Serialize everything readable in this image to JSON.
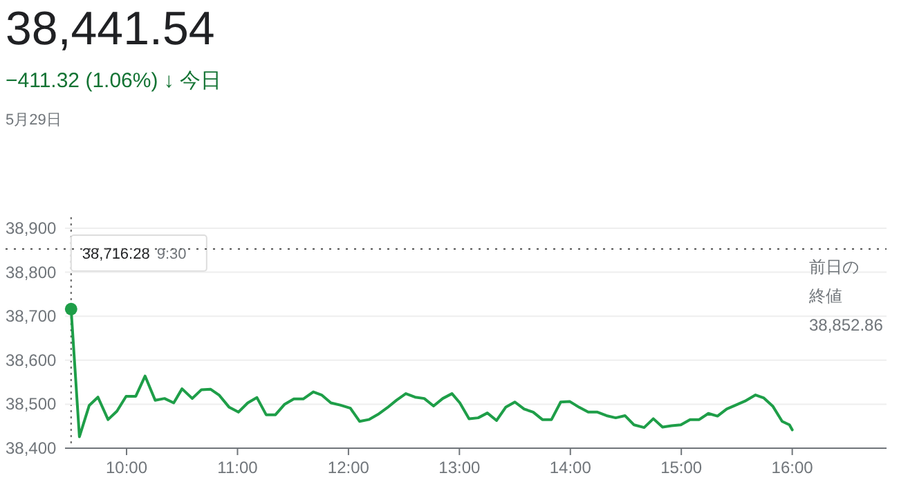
{
  "chart_data": {
    "type": "line",
    "title": "38,441.54",
    "subtitle": "−411.32 (1.06%) ↓ 今日",
    "annotations": [
      "5月29日",
      "38,716.28 9:30"
    ],
    "series": [
      {
        "color": "#1e9e48",
        "x": [
          9.5,
          9.575,
          9.663,
          9.742,
          9.833,
          9.913,
          9.996,
          10.083,
          10.167,
          10.258,
          10.342,
          10.425,
          10.5,
          10.592,
          10.675,
          10.758,
          10.833,
          10.925,
          11.008,
          11.092,
          11.175,
          11.258,
          11.342,
          11.425,
          11.508,
          11.592,
          11.683,
          11.758,
          11.842,
          11.925,
          12.017,
          12.1,
          12.183,
          12.267,
          12.35,
          12.433,
          12.517,
          12.6,
          12.683,
          12.767,
          12.85,
          12.933,
          13.004,
          13.087,
          13.169,
          13.252,
          13.335,
          13.417,
          13.5,
          13.583,
          13.665,
          13.748,
          13.83,
          13.913,
          13.996,
          14.079,
          14.161,
          14.244,
          14.326,
          14.409,
          14.492,
          14.574,
          14.665,
          14.748,
          14.831,
          14.913,
          14.996,
          15.079,
          15.161,
          15.244,
          15.326,
          15.409,
          15.492,
          15.574,
          15.669,
          15.744,
          15.826,
          15.909,
          15.975,
          16.0
        ],
        "values": [
          38716.28,
          38426,
          38497,
          38516,
          38465,
          38484,
          38518,
          38518,
          38564,
          38509,
          38513,
          38503,
          38535,
          38513,
          38533,
          38534,
          38521,
          38493,
          38482,
          38503,
          38515,
          38476,
          38476,
          38500,
          38512,
          38512,
          38528,
          38521,
          38503,
          38498,
          38491,
          38461,
          38465,
          38477,
          38492,
          38509,
          38524,
          38516,
          38513,
          38496,
          38513,
          38524,
          38503,
          38467,
          38469,
          38480,
          38463,
          38493,
          38505,
          38489,
          38482,
          38465,
          38465,
          38505,
          38506,
          38493,
          38482,
          38482,
          38474,
          38469,
          38474,
          38453,
          38447,
          38467,
          38448,
          38451,
          38453,
          38465,
          38465,
          38479,
          38473,
          38489,
          38498,
          38507,
          38521,
          38514,
          38495,
          38461,
          38453,
          38441.54
        ]
      }
    ],
    "xlim": [
      9.47,
      16.85
    ],
    "xticks": [
      {
        "value": 10,
        "label": "10:00"
      },
      {
        "value": 11,
        "label": "11:00"
      },
      {
        "value": 12,
        "label": "12:00"
      },
      {
        "value": 13,
        "label": "13:00"
      },
      {
        "value": 14,
        "label": "14:00"
      },
      {
        "value": 15,
        "label": "15:00"
      },
      {
        "value": 16,
        "label": "16:00"
      }
    ],
    "ylim": [
      38400,
      38900
    ],
    "yticks": [
      {
        "value": 38400,
        "label": "38,400"
      },
      {
        "value": 38500,
        "label": "38,500"
      },
      {
        "value": 38600,
        "label": "38,600"
      },
      {
        "value": 38700,
        "label": "38,700"
      },
      {
        "value": 38800,
        "label": "38,800"
      },
      {
        "value": 38900,
        "label": "38,900"
      }
    ],
    "ref_lines": [
      {
        "axis": "y",
        "value": 38852.86,
        "label": "前日の終値 38,852.86",
        "line_style": "dotted",
        "color": "#555555"
      }
    ],
    "grid": "y",
    "marker": "none",
    "line_style": "solid"
  }
}
